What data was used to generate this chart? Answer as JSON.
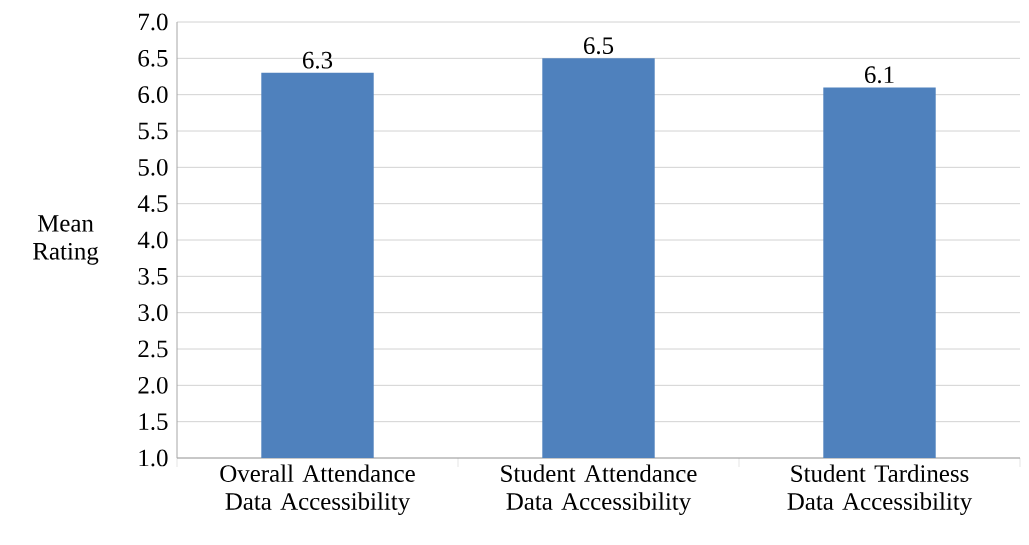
{
  "chart_data": {
    "type": "bar",
    "ylabel": "Mean Rating",
    "categories": [
      "Overall Attendance Data Accessibility",
      "Student Attendance Data Accessibility",
      "Student Tardiness Data Accessibility"
    ],
    "values": [
      6.3,
      6.5,
      6.1
    ],
    "color": "#4f81bd",
    "ylim": [
      1.0,
      7.0
    ],
    "yticks": [
      {
        "value": 1.0,
        "label": "1.0"
      },
      {
        "value": 1.5,
        "label": "1.5"
      },
      {
        "value": 2.0,
        "label": "2.0"
      },
      {
        "value": 2.5,
        "label": "2.5"
      },
      {
        "value": 3.0,
        "label": "3.0"
      },
      {
        "value": 3.5,
        "label": "3.5"
      },
      {
        "value": 4.0,
        "label": "4.0"
      },
      {
        "value": 4.5,
        "label": "4.5"
      },
      {
        "value": 5.0,
        "label": "5.0"
      },
      {
        "value": 5.5,
        "label": "5.5"
      },
      {
        "value": 6.0,
        "label": "6.0"
      },
      {
        "value": 6.5,
        "label": "6.5"
      },
      {
        "value": 7.0,
        "label": "7.0"
      }
    ],
    "grid": "y",
    "data_labels": true
  }
}
